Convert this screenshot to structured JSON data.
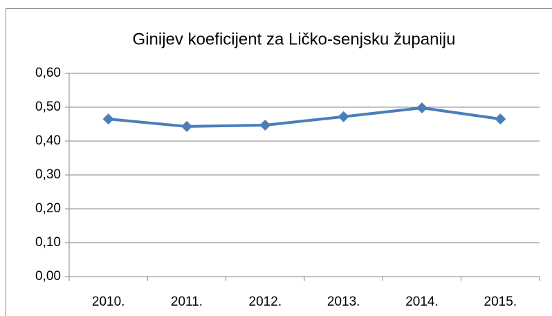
{
  "chart_data": {
    "type": "line",
    "title": "Ginijev koeficijent za Ličko-senjsku županiju",
    "categories": [
      "2010.",
      "2011.",
      "2012.",
      "2013.",
      "2014.",
      "2015."
    ],
    "values": [
      0.465,
      0.443,
      0.447,
      0.472,
      0.498,
      0.465
    ],
    "color": "#4a7ebb",
    "ylim": [
      0,
      0.6
    ],
    "yticks": [
      {
        "value": 0,
        "label": "0,00"
      },
      {
        "value": 0.1,
        "label": "0,10"
      },
      {
        "value": 0.2,
        "label": "0,20"
      },
      {
        "value": 0.3,
        "label": "0,30"
      },
      {
        "value": 0.4,
        "label": "0,40"
      },
      {
        "value": 0.5,
        "label": "0,50"
      },
      {
        "value": 0.6,
        "label": "0,60"
      }
    ],
    "grid": true
  }
}
